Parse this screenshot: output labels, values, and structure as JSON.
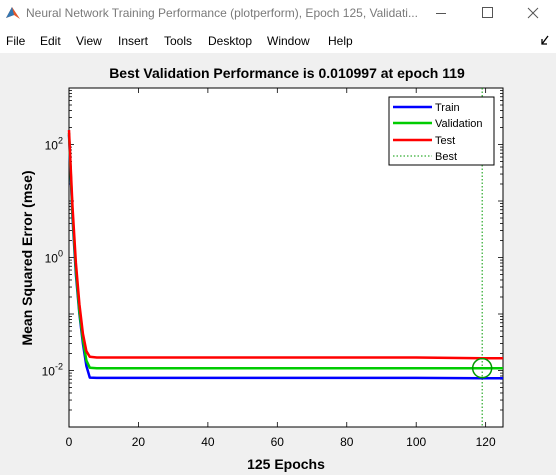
{
  "window": {
    "title": "Neural Network Training Performance (plotperform), Epoch 125, Validati...",
    "minimize": "minimize-icon",
    "maximize": "maximize-icon",
    "close": "close-icon"
  },
  "menu": {
    "items": [
      "File",
      "Edit",
      "View",
      "Insert",
      "Tools",
      "Desktop",
      "Window",
      "Help"
    ]
  },
  "colors": {
    "train": "#0000ff",
    "validation": "#00cc00",
    "test": "#ff0000",
    "best": "#009900"
  },
  "chart_data": {
    "type": "line",
    "title": "Best Validation Performance is 0.010997 at epoch 119",
    "xlabel": "125 Epochs",
    "ylabel": "Mean Squared Error  (mse)",
    "xlim": [
      0,
      125
    ],
    "ylim": [
      0.001,
      1000
    ],
    "yscale": "log",
    "grid": false,
    "legend": "top-right",
    "xticks": [
      0,
      20,
      40,
      60,
      80,
      100,
      120
    ],
    "yticks": [
      {
        "value": 0.01,
        "base": "10",
        "exp": "-2"
      },
      {
        "value": 1,
        "base": "10",
        "exp": "0"
      },
      {
        "value": 100,
        "base": "10",
        "exp": "2"
      }
    ],
    "x": [
      0,
      1,
      2,
      3,
      4,
      5,
      6,
      8,
      10,
      20,
      40,
      60,
      80,
      100,
      119,
      125
    ],
    "series": [
      {
        "name": "Train",
        "key": "train",
        "values": [
          150,
          5,
          0.5,
          0.1,
          0.03,
          0.012,
          0.0075,
          0.0074,
          0.0074,
          0.0074,
          0.0074,
          0.0074,
          0.0074,
          0.0074,
          0.0073,
          0.0073
        ]
      },
      {
        "name": "Validation",
        "key": "validation",
        "values": [
          160,
          6,
          0.6,
          0.11,
          0.035,
          0.015,
          0.0112,
          0.011,
          0.011,
          0.011,
          0.011,
          0.011,
          0.011,
          0.011,
          0.010997,
          0.011
        ]
      },
      {
        "name": "Test",
        "key": "test",
        "values": [
          180,
          8,
          0.8,
          0.15,
          0.045,
          0.022,
          0.0175,
          0.017,
          0.017,
          0.017,
          0.017,
          0.017,
          0.017,
          0.017,
          0.0165,
          0.0165
        ]
      }
    ],
    "best": {
      "name": "Best",
      "epoch": 119,
      "value": 0.010997
    }
  }
}
